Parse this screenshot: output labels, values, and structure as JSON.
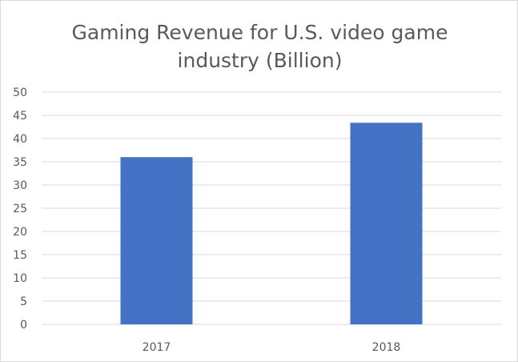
{
  "chart_data": {
    "type": "bar",
    "title_line1": "Gaming Revenue for U.S. video game",
    "title_line2": "industry (Billion)",
    "categories": [
      "2017",
      "2018"
    ],
    "values": [
      36,
      43.4
    ],
    "ylim": [
      0,
      50
    ],
    "yticks": [
      "0",
      "5",
      "10",
      "15",
      "20",
      "25",
      "30",
      "35",
      "40",
      "45",
      "50"
    ],
    "ytick_values": [
      0,
      5,
      10,
      15,
      20,
      25,
      30,
      35,
      40,
      45,
      50
    ],
    "grid": true,
    "legend": "none",
    "bar_color": "#4472c4"
  }
}
